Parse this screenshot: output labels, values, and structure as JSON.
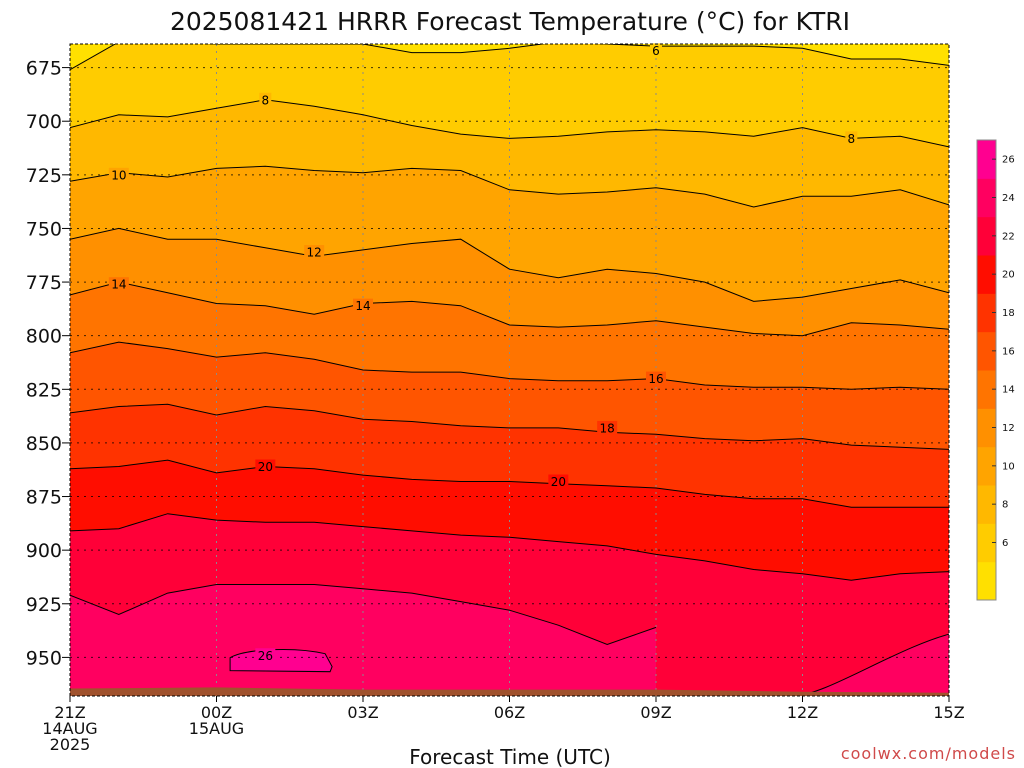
{
  "chart_data": {
    "type": "heatmap",
    "title": "2025081421 HRRR Forecast Temperature (°C) for KTRI",
    "xlabel": "Forecast Time (UTC)",
    "ylabel": "",
    "credit": "coolwx.com/models",
    "x_ticks": [
      {
        "hour": 0,
        "lines": [
          "21Z",
          "14AUG",
          "2025"
        ]
      },
      {
        "hour": 3,
        "lines": [
          "00Z",
          "15AUG"
        ]
      },
      {
        "hour": 6,
        "lines": [
          "03Z"
        ]
      },
      {
        "hour": 9,
        "lines": [
          "06Z"
        ]
      },
      {
        "hour": 12,
        "lines": [
          "09Z"
        ]
      },
      {
        "hour": 15,
        "lines": [
          "12Z"
        ]
      },
      {
        "hour": 18,
        "lines": [
          "15Z"
        ]
      }
    ],
    "x_range_hours": [
      0,
      18
    ],
    "y_ticks": [
      675,
      700,
      725,
      750,
      775,
      800,
      825,
      850,
      875,
      900,
      925,
      950
    ],
    "y_range_hpa": [
      664,
      968
    ],
    "colorbar": {
      "levels": [
        4,
        6,
        8,
        10,
        12,
        14,
        16,
        18,
        20,
        22,
        24,
        26,
        28
      ],
      "tick_labels": [
        6,
        8,
        10,
        12,
        14,
        16,
        18,
        20,
        22,
        24,
        26
      ],
      "colors": [
        "#ffe000",
        "#ffcc00",
        "#ffb800",
        "#ffa400",
        "#ff9000",
        "#ff7400",
        "#ff5500",
        "#ff3300",
        "#ff0d00",
        "#ff0038",
        "#ff0060",
        "#ff0090"
      ]
    },
    "x_hours": [
      0,
      1,
      2,
      3,
      4,
      5,
      6,
      7,
      8,
      9,
      10,
      11,
      12,
      13,
      14,
      15,
      16,
      17,
      18
    ],
    "isotherms": [
      {
        "value": 6,
        "y_hpa": [
          676,
          663,
          663,
          664,
          664,
          664,
          664,
          668,
          668,
          666,
          663,
          664,
          665,
          665,
          665,
          666,
          671,
          671,
          674
        ]
      },
      {
        "value": 8,
        "y_hpa": [
          703,
          697,
          698,
          694,
          690,
          693,
          697,
          702,
          706,
          708,
          707,
          705,
          704,
          705,
          707,
          703,
          708,
          707,
          712
        ]
      },
      {
        "value": 10,
        "y_hpa": [
          728,
          724,
          726,
          722,
          721,
          723,
          724,
          722,
          723,
          732,
          734,
          733,
          731,
          734,
          740,
          735,
          735,
          732,
          739
        ]
      },
      {
        "value": 12,
        "y_hpa": [
          755,
          750,
          755,
          755,
          759,
          763,
          760,
          757,
          755,
          769,
          773,
          769,
          771,
          775,
          784,
          782,
          778,
          774,
          780
        ]
      },
      {
        "value": 14,
        "y_hpa": [
          781,
          775,
          780,
          785,
          786,
          790,
          785,
          784,
          786,
          795,
          796,
          795,
          793,
          796,
          799,
          800,
          794,
          795,
          797
        ]
      },
      {
        "value": 16,
        "y_hpa": [
          808,
          803,
          806,
          810,
          808,
          811,
          816,
          817,
          817,
          820,
          821,
          821,
          820,
          823,
          824,
          824,
          825,
          824,
          825
        ]
      },
      {
        "value": 18,
        "y_hpa": [
          836,
          833,
          832,
          837,
          833,
          835,
          839,
          840,
          842,
          843,
          843,
          845,
          846,
          848,
          849,
          848,
          851,
          852,
          853
        ]
      },
      {
        "value": 20,
        "y_hpa": [
          862,
          861,
          858,
          864,
          861,
          862,
          865,
          867,
          868,
          868,
          869,
          870,
          871,
          874,
          876,
          876,
          880,
          880,
          880
        ]
      },
      {
        "value": 22,
        "y_hpa": [
          891,
          890,
          883,
          886,
          887,
          887,
          889,
          891,
          893,
          894,
          896,
          898,
          902,
          905,
          909,
          911,
          914,
          911,
          910
        ]
      },
      {
        "value": 24,
        "y_hpa": [
          921,
          930,
          920,
          916,
          916,
          916,
          918,
          920,
          924,
          928,
          935,
          944,
          936
        ]
      }
    ],
    "contour_labels": [
      {
        "text": "6",
        "hour": 12.0,
        "hpa": 667
      },
      {
        "text": "8",
        "hour": 4.0,
        "hpa": 690
      },
      {
        "text": "8",
        "hour": 16.0,
        "hpa": 708
      },
      {
        "text": "10",
        "hour": 1.0,
        "hpa": 725
      },
      {
        "text": "12",
        "hour": 5.0,
        "hpa": 761
      },
      {
        "text": "14",
        "hour": 1.0,
        "hpa": 776
      },
      {
        "text": "14",
        "hour": 6.0,
        "hpa": 786
      },
      {
        "text": "16",
        "hour": 12.0,
        "hpa": 820
      },
      {
        "text": "18",
        "hour": 11.0,
        "hpa": 843
      },
      {
        "text": "20",
        "hour": 4.0,
        "hpa": 861
      },
      {
        "text": "20",
        "hour": 10.0,
        "hpa": 868
      },
      {
        "text": "26",
        "hour": 4.0,
        "hpa": 949
      }
    ],
    "warm_pocket_26": {
      "value": 26,
      "center_hour": 4.2,
      "center_hpa": 952
    }
  }
}
